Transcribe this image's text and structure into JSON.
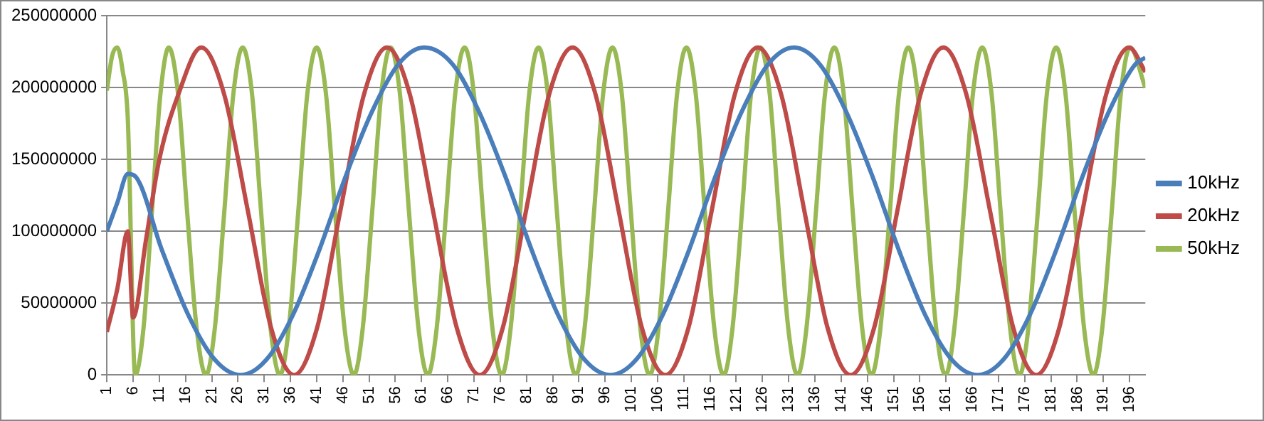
{
  "chart_data": {
    "type": "line",
    "xlim": [
      1,
      199
    ],
    "xticks": [
      1,
      6,
      11,
      16,
      21,
      26,
      31,
      36,
      41,
      46,
      51,
      56,
      61,
      66,
      71,
      76,
      81,
      86,
      91,
      96,
      101,
      106,
      111,
      116,
      121,
      126,
      131,
      136,
      141,
      146,
      151,
      156,
      161,
      166,
      171,
      176,
      181,
      186,
      191,
      196
    ],
    "ylim": [
      0,
      250000000
    ],
    "yticks": [
      0,
      50000000,
      100000000,
      150000000,
      200000000,
      250000000
    ],
    "grid": "y",
    "legend": "right",
    "marker": "none",
    "line_style": "solid",
    "series": [
      {
        "name": "10kHz",
        "color": "#4a7ebb",
        "x": [
          1,
          3,
          5,
          6.5,
          11.5,
          16.5,
          21.5,
          26.5,
          31.5,
          36.5,
          41.5,
          46.5,
          51.5,
          56.5,
          61.5,
          67,
          72,
          77,
          82,
          87,
          92,
          97,
          102,
          107,
          112,
          117,
          122,
          127,
          132,
          137,
          142,
          147,
          152,
          157,
          162,
          167,
          172,
          177,
          182,
          187,
          192,
          197,
          199
        ],
        "values": [
          100000000,
          120000000,
          140000000,
          138000000,
          87000000,
          42000000,
          11000000,
          0,
          11000000,
          42000000,
          87000000,
          138000000,
          183000000,
          216000000,
          228000000,
          216000000,
          183000000,
          138000000,
          87000000,
          42000000,
          11000000,
          0,
          11000000,
          42000000,
          87000000,
          138000000,
          183000000,
          216000000,
          228000000,
          216000000,
          183000000,
          138000000,
          87000000,
          42000000,
          11000000,
          0,
          11000000,
          42000000,
          87000000,
          138000000,
          183000000,
          216000000,
          221000000
        ]
      },
      {
        "name": "20kHz",
        "color": "#be4b48",
        "x": [
          1,
          3,
          5,
          6,
          8.5,
          11,
          14.6,
          19,
          23.4,
          27.9,
          32.3,
          36.7,
          41.1,
          45.5,
          50,
          54.4,
          58.8,
          63.2,
          67.7,
          72.1,
          76.5,
          80.9,
          85.3,
          89.8,
          94.2,
          98.6,
          103,
          107.5,
          111.9,
          116.3,
          120.7,
          125.1,
          129.6,
          134,
          138.4,
          142.8,
          147.3,
          151.7,
          156.1,
          160.5,
          164.9,
          169.4,
          173.8,
          178.2,
          182.6,
          187,
          191.5,
          195.9,
          199
        ],
        "values": [
          30000000,
          60000000,
          100000000,
          40000000,
          95000000,
          150000000,
          195000000,
          228000000,
          195000000,
          114000000,
          33000000,
          0,
          33000000,
          114000000,
          195000000,
          228000000,
          195000000,
          114000000,
          33000000,
          0,
          33000000,
          114000000,
          195000000,
          228000000,
          195000000,
          114000000,
          33000000,
          0,
          33000000,
          114000000,
          195000000,
          228000000,
          195000000,
          114000000,
          33000000,
          0,
          33000000,
          114000000,
          195000000,
          228000000,
          195000000,
          114000000,
          33000000,
          0,
          33000000,
          114000000,
          195000000,
          228000000,
          211000000
        ]
      },
      {
        "name": "50kHz",
        "color": "#98b954",
        "x": [
          1,
          2,
          3,
          4,
          5,
          6.4,
          8,
          9.6,
          11.2,
          12.8,
          14.6,
          16.3,
          18.1,
          19.9,
          21.6,
          23.4,
          25.1,
          26.9,
          28.7,
          30.4,
          32.2,
          34,
          35.7,
          37.5,
          39.2,
          41,
          42.8,
          44.5,
          46.3,
          48.1,
          49.8,
          51.6,
          53.3,
          55.1,
          56.9,
          58.6,
          60.4,
          62.2,
          63.9,
          65.7,
          67.4,
          69.2,
          71,
          72.7,
          74.5,
          76.3,
          78,
          79.8,
          81.5,
          83.3,
          85.1,
          86.8,
          88.6,
          90.4,
          92.1,
          93.9,
          95.6,
          97.4,
          99.2,
          100.9,
          102.7,
          104.5,
          106.2,
          108,
          109.7,
          111.5,
          113.3,
          115,
          116.8,
          118.6,
          120.3,
          122.1,
          123.8,
          125.6,
          127.4,
          129.1,
          130.9,
          132.7,
          134.4,
          136.2,
          137.9,
          139.7,
          141.5,
          143.2,
          145,
          146.8,
          148.5,
          150.3,
          152,
          153.8,
          155.6,
          157.3,
          159.1,
          160.9,
          162.6,
          164.4,
          166.1,
          167.9,
          169.7,
          171.4,
          173.2,
          175,
          176.7,
          178.5,
          180.2,
          182,
          183.8,
          185.5,
          187.3,
          189.1,
          190.8,
          192.6,
          194.3,
          196.1,
          199
        ],
        "values": [
          198000000,
          222000000,
          228000000,
          212000000,
          178000000,
          0,
          33000000,
          114000000,
          195000000,
          228000000,
          195000000,
          114000000,
          33000000,
          0,
          33000000,
          114000000,
          195000000,
          228000000,
          195000000,
          114000000,
          33000000,
          0,
          33000000,
          114000000,
          195000000,
          228000000,
          195000000,
          114000000,
          33000000,
          0,
          33000000,
          114000000,
          195000000,
          228000000,
          195000000,
          114000000,
          33000000,
          0,
          33000000,
          114000000,
          195000000,
          228000000,
          195000000,
          114000000,
          33000000,
          0,
          33000000,
          114000000,
          195000000,
          228000000,
          195000000,
          114000000,
          33000000,
          0,
          33000000,
          114000000,
          195000000,
          228000000,
          195000000,
          114000000,
          33000000,
          0,
          33000000,
          114000000,
          195000000,
          228000000,
          195000000,
          114000000,
          33000000,
          0,
          33000000,
          114000000,
          195000000,
          228000000,
          195000000,
          114000000,
          33000000,
          0,
          33000000,
          114000000,
          195000000,
          228000000,
          195000000,
          114000000,
          33000000,
          0,
          33000000,
          114000000,
          195000000,
          228000000,
          195000000,
          114000000,
          33000000,
          0,
          33000000,
          114000000,
          195000000,
          228000000,
          195000000,
          114000000,
          33000000,
          0,
          33000000,
          114000000,
          195000000,
          228000000,
          195000000,
          114000000,
          33000000,
          0,
          33000000,
          114000000,
          195000000,
          228000000,
          200000000
        ]
      }
    ]
  }
}
